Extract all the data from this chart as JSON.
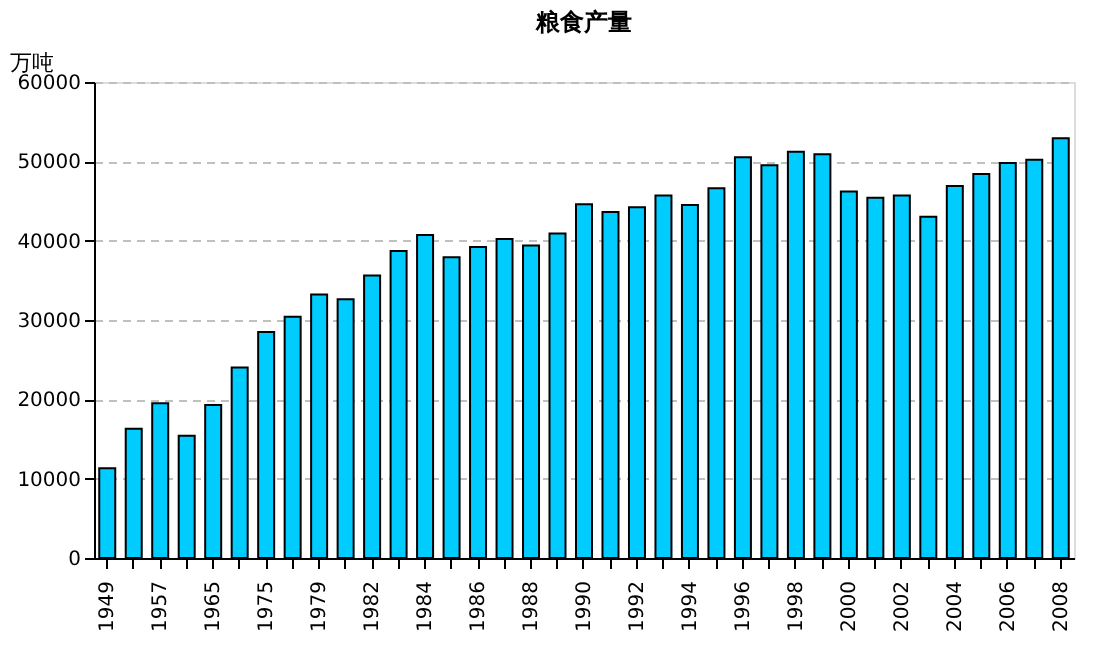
{
  "chart_data": {
    "type": "bar",
    "title": "粮食产量",
    "ylabel": "万吨",
    "categories": [
      "1949",
      null,
      "1957",
      null,
      "1965",
      null,
      "1975",
      null,
      "1979",
      null,
      "1982",
      null,
      "1984",
      null,
      "1986",
      null,
      "1988",
      null,
      "1990",
      null,
      "1992",
      null,
      "1994",
      null,
      "1996",
      null,
      "1998",
      null,
      "2000",
      null,
      "2002",
      null,
      "2004",
      null,
      "2006",
      null,
      "2008"
    ],
    "values": [
      11300,
      16300,
      19500,
      15400,
      19300,
      24000,
      28500,
      30400,
      33200,
      32600,
      35600,
      38700,
      40700,
      37900,
      39200,
      40200,
      39400,
      40900,
      44600,
      43600,
      44200,
      45700,
      44500,
      46600,
      50500,
      49500,
      51200,
      50900,
      46200,
      45400,
      45700,
      43000,
      46900,
      48400,
      49800,
      50200,
      52900
    ],
    "color": "#00ccff",
    "ylim": [
      0,
      60000
    ],
    "yticks": [
      0,
      10000,
      20000,
      30000,
      40000,
      50000,
      60000
    ],
    "grid": "y"
  }
}
